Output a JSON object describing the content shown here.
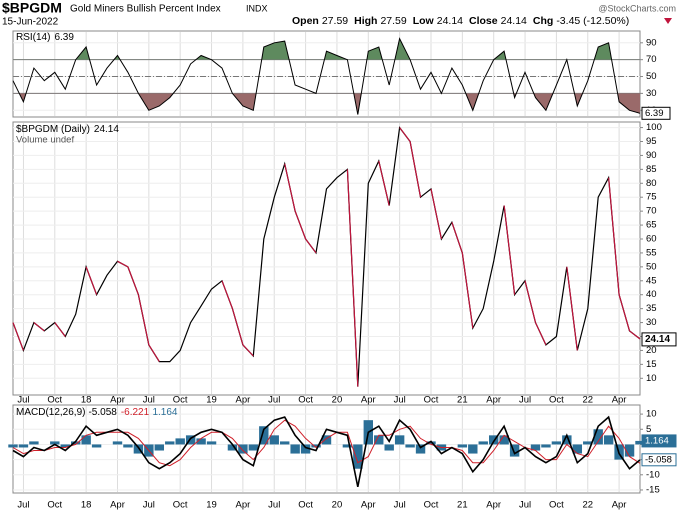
{
  "header": {
    "symbol": "$BPGDM",
    "name": "Gold Miners Bullish Percent Index",
    "exchange": "INDX",
    "date": "15-Jun-2022",
    "quote": [
      {
        "label": "Open",
        "value": 27.59
      },
      {
        "label": "High",
        "value": 27.59
      },
      {
        "label": "Low",
        "value": 24.14
      },
      {
        "label": "Close",
        "value": 24.14
      },
      {
        "label": "Chg",
        "value": "-3.45 (-12.50%)"
      }
    ],
    "credit": "@StockCharts.com"
  },
  "chart_data": [
    {
      "type": "line",
      "label": "RSI(14)",
      "categories": [
        null,
        "Jul",
        null,
        null,
        "Oct",
        null,
        null,
        "18",
        null,
        null,
        "Apr",
        null,
        null,
        "Jul",
        null,
        null,
        "Oct",
        null,
        null,
        "19",
        null,
        null,
        "Apr",
        null,
        null,
        "Jul",
        null,
        null,
        "Oct",
        null,
        null,
        "20",
        null,
        null,
        "Apr",
        null,
        null,
        "Jul",
        null,
        null,
        "Oct",
        null,
        null,
        "21",
        null,
        null,
        "Apr",
        null,
        null,
        "Jul",
        null,
        null,
        "Oct",
        null,
        null,
        "22",
        null,
        null,
        "Apr",
        null,
        null
      ],
      "values": [
        45,
        20,
        60,
        45,
        55,
        35,
        70,
        85,
        40,
        60,
        75,
        55,
        30,
        10,
        15,
        25,
        40,
        65,
        75,
        70,
        60,
        30,
        15,
        10,
        85,
        90,
        92,
        40,
        35,
        30,
        80,
        75,
        70,
        5,
        80,
        85,
        40,
        95,
        70,
        35,
        55,
        30,
        60,
        40,
        10,
        45,
        70,
        80,
        25,
        55,
        25,
        10,
        40,
        70,
        15,
        45,
        85,
        90,
        20,
        10,
        6.39
      ],
      "color": "#000000",
      "overbought": 70,
      "oversold": 30,
      "midline": 50,
      "overbought_color": "#5e8a5e",
      "oversold_color": "#9a6a6a",
      "ylim": [
        2,
        104
      ],
      "yticks": [
        90,
        70,
        50,
        30,
        10
      ]
    },
    {
      "type": "line",
      "label": "$BPGDM (Daily)",
      "volume_label": "Volume undef",
      "values": [
        30,
        20,
        30,
        27,
        30,
        25,
        33,
        50,
        40,
        47,
        52,
        50,
        40,
        22,
        16,
        16,
        20,
        30,
        36,
        42,
        45,
        35,
        22,
        18,
        60,
        75,
        87,
        70,
        60,
        55,
        78,
        82,
        85,
        7,
        80,
        88,
        72,
        100,
        95,
        75,
        78,
        60,
        66,
        55,
        28,
        35,
        52,
        72,
        40,
        45,
        30,
        22,
        25,
        50,
        20,
        35,
        75,
        82,
        40,
        27,
        24.14
      ],
      "up_color": "#000000",
      "down_color": "#c0143c",
      "ylim": [
        4,
        102
      ],
      "yticks": [
        100,
        95,
        90,
        85,
        80,
        75,
        70,
        65,
        60,
        55,
        50,
        45,
        40,
        35,
        30,
        25,
        20,
        15,
        10
      ]
    },
    {
      "type": "macd",
      "label": "MACD(12,26,9)",
      "series": [
        {
          "color": "#000000",
          "values": [
            -2,
            -4,
            -1,
            -2,
            0,
            -2,
            1,
            6,
            3,
            4,
            5,
            3,
            -1,
            -6,
            -8,
            -6,
            -3,
            2,
            4,
            5,
            4,
            0,
            -5,
            -7,
            5,
            8,
            9,
            3,
            -1,
            -2,
            5,
            4,
            3,
            -14,
            4,
            6,
            1,
            8,
            5,
            -1,
            1,
            -3,
            -1,
            -3,
            -9,
            -5,
            1,
            6,
            -3,
            -1,
            -4,
            -6,
            -4,
            3,
            -6,
            -3,
            6,
            9,
            -3,
            -8,
            -5.058
          ]
        },
        {
          "color": "#d0202a",
          "values": [
            -1,
            -3,
            -2,
            -2,
            -1,
            -1,
            0,
            3,
            4,
            4,
            4,
            4,
            2,
            -2,
            -6,
            -7,
            -5,
            -1,
            2,
            4,
            4,
            2,
            -2,
            -5,
            -1,
            5,
            8,
            6,
            2,
            -1,
            2,
            4,
            4,
            -6,
            -4,
            3,
            3,
            5,
            6,
            2,
            0,
            -1,
            -1,
            -2,
            -6,
            -6,
            -2,
            3,
            1,
            -1,
            -2,
            -5,
            -5,
            0,
            -3,
            -4,
            1,
            6,
            2,
            -4,
            -6.221
          ]
        },
        {
          "color": "#2b6f97",
          "values": [
            -1,
            -1,
            1,
            0,
            1,
            -1,
            1,
            3,
            -1,
            0,
            1,
            -1,
            -3,
            -4,
            -2,
            1,
            2,
            3,
            2,
            1,
            0,
            -2,
            -3,
            -2,
            6,
            3,
            1,
            -3,
            -3,
            -1,
            3,
            0,
            -1,
            -8,
            8,
            3,
            -2,
            3,
            -1,
            -3,
            1,
            -2,
            0,
            -1,
            -3,
            1,
            3,
            3,
            -4,
            0,
            -2,
            -1,
            1,
            3,
            -3,
            1,
            5,
            3,
            -5,
            -4,
            1.164
          ]
        }
      ],
      "ylim": [
        -16,
        13
      ],
      "yticks": [
        10,
        5,
        0,
        -5,
        -10,
        -15
      ]
    }
  ]
}
